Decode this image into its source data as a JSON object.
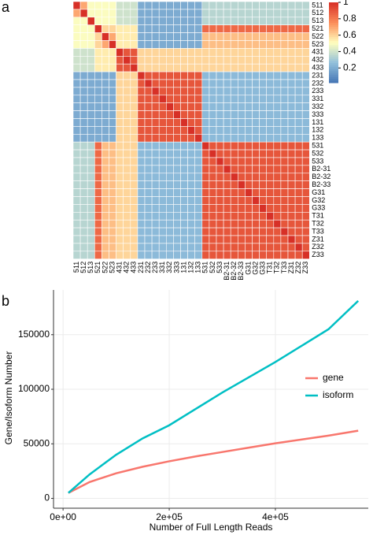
{
  "chart_data": [
    {
      "type": "heatmap",
      "panel_label": "a",
      "labels": [
        "511",
        "512",
        "513",
        "521",
        "522",
        "523",
        "431",
        "432",
        "433",
        "231",
        "232",
        "233",
        "331",
        "332",
        "333",
        "131",
        "132",
        "133",
        "531",
        "532",
        "533",
        "B2-31",
        "B2-32",
        "B2-33",
        "G31",
        "G32",
        "G33",
        "T31",
        "T32",
        "T33",
        "Z31",
        "Z32",
        "Z33"
      ],
      "clim": [
        0.02,
        1.0
      ],
      "cticks": [
        0.2,
        0.4,
        0.6,
        0.8,
        1
      ],
      "colormap": [
        "#4575b4",
        "#91bfdb",
        "#ffffbf",
        "#fc8d59",
        "#d73027"
      ],
      "matrix": [
        [
          1,
          0.7,
          0.5,
          0.5,
          0.5,
          0.5,
          0.4,
          0.4,
          0.4,
          0.2,
          0.2,
          0.2,
          0.2,
          0.2,
          0.2,
          0.2,
          0.2,
          0.2,
          0.35,
          0.35,
          0.35,
          0.35,
          0.35,
          0.35,
          0.35,
          0.35,
          0.35,
          0.35,
          0.35,
          0.35,
          0.35,
          0.35,
          0.35
        ],
        [
          0.7,
          1,
          0.5,
          0.5,
          0.5,
          0.5,
          0.4,
          0.4,
          0.4,
          0.2,
          0.2,
          0.2,
          0.2,
          0.2,
          0.2,
          0.2,
          0.2,
          0.2,
          0.35,
          0.35,
          0.35,
          0.35,
          0.35,
          0.35,
          0.35,
          0.35,
          0.35,
          0.35,
          0.35,
          0.35,
          0.35,
          0.35,
          0.35
        ],
        [
          0.5,
          0.5,
          1,
          0.5,
          0.5,
          0.5,
          0.4,
          0.4,
          0.4,
          0.2,
          0.2,
          0.2,
          0.2,
          0.2,
          0.2,
          0.2,
          0.2,
          0.2,
          0.35,
          0.35,
          0.35,
          0.35,
          0.35,
          0.35,
          0.35,
          0.35,
          0.35,
          0.35,
          0.35,
          0.35,
          0.35,
          0.35,
          0.35
        ],
        [
          0.5,
          0.5,
          0.5,
          1,
          0.6,
          0.6,
          0.55,
          0.55,
          0.55,
          0.2,
          0.2,
          0.2,
          0.2,
          0.2,
          0.2,
          0.2,
          0.2,
          0.2,
          0.85,
          0.85,
          0.85,
          0.85,
          0.85,
          0.85,
          0.85,
          0.85,
          0.85,
          0.85,
          0.85,
          0.85,
          0.85,
          0.85,
          0.85
        ],
        [
          0.5,
          0.5,
          0.5,
          0.6,
          1,
          0.7,
          0.55,
          0.55,
          0.55,
          0.2,
          0.2,
          0.2,
          0.2,
          0.2,
          0.2,
          0.2,
          0.2,
          0.2,
          0.65,
          0.65,
          0.65,
          0.65,
          0.65,
          0.65,
          0.65,
          0.65,
          0.65,
          0.65,
          0.65,
          0.65,
          0.65,
          0.65,
          0.65
        ],
        [
          0.5,
          0.5,
          0.5,
          0.6,
          0.7,
          1,
          0.55,
          0.55,
          0.55,
          0.2,
          0.2,
          0.2,
          0.2,
          0.2,
          0.2,
          0.2,
          0.2,
          0.2,
          0.65,
          0.65,
          0.65,
          0.65,
          0.65,
          0.65,
          0.65,
          0.65,
          0.65,
          0.65,
          0.65,
          0.65,
          0.65,
          0.65,
          0.65
        ],
        [
          0.4,
          0.4,
          0.4,
          0.55,
          0.55,
          0.55,
          1,
          0.9,
          0.9,
          0.6,
          0.6,
          0.6,
          0.6,
          0.6,
          0.6,
          0.6,
          0.6,
          0.6,
          0.6,
          0.6,
          0.6,
          0.6,
          0.6,
          0.6,
          0.6,
          0.6,
          0.6,
          0.6,
          0.6,
          0.6,
          0.6,
          0.6,
          0.6
        ],
        [
          0.4,
          0.4,
          0.4,
          0.55,
          0.55,
          0.55,
          0.9,
          1,
          0.9,
          0.6,
          0.6,
          0.6,
          0.6,
          0.6,
          0.6,
          0.6,
          0.6,
          0.6,
          0.6,
          0.6,
          0.6,
          0.6,
          0.6,
          0.6,
          0.6,
          0.6,
          0.6,
          0.6,
          0.6,
          0.6,
          0.6,
          0.6,
          0.6
        ],
        [
          0.4,
          0.4,
          0.4,
          0.55,
          0.55,
          0.55,
          0.9,
          0.9,
          1,
          0.6,
          0.6,
          0.6,
          0.6,
          0.6,
          0.6,
          0.6,
          0.6,
          0.6,
          0.6,
          0.6,
          0.6,
          0.6,
          0.6,
          0.6,
          0.6,
          0.6,
          0.6,
          0.6,
          0.6,
          0.6,
          0.6,
          0.6,
          0.6
        ],
        [
          0.2,
          0.2,
          0.2,
          0.2,
          0.2,
          0.2,
          0.6,
          0.6,
          0.6,
          1,
          0.9,
          0.9,
          0.9,
          0.9,
          0.9,
          0.9,
          0.9,
          0.9,
          0.25,
          0.25,
          0.25,
          0.25,
          0.25,
          0.25,
          0.25,
          0.25,
          0.25,
          0.25,
          0.25,
          0.25,
          0.25,
          0.25,
          0.25
        ],
        [
          0.2,
          0.2,
          0.2,
          0.2,
          0.2,
          0.2,
          0.6,
          0.6,
          0.6,
          0.9,
          1,
          0.9,
          0.9,
          0.9,
          0.9,
          0.9,
          0.9,
          0.9,
          0.25,
          0.25,
          0.25,
          0.25,
          0.25,
          0.25,
          0.25,
          0.25,
          0.25,
          0.25,
          0.25,
          0.25,
          0.25,
          0.25,
          0.25
        ],
        [
          0.2,
          0.2,
          0.2,
          0.2,
          0.2,
          0.2,
          0.6,
          0.6,
          0.6,
          0.9,
          0.9,
          1,
          0.9,
          0.9,
          0.9,
          0.9,
          0.9,
          0.9,
          0.25,
          0.25,
          0.25,
          0.25,
          0.25,
          0.25,
          0.25,
          0.25,
          0.25,
          0.25,
          0.25,
          0.25,
          0.25,
          0.25,
          0.25
        ],
        [
          0.2,
          0.2,
          0.2,
          0.2,
          0.2,
          0.2,
          0.6,
          0.6,
          0.6,
          0.9,
          0.9,
          0.9,
          1,
          0.9,
          0.9,
          0.9,
          0.9,
          0.9,
          0.25,
          0.25,
          0.25,
          0.25,
          0.25,
          0.25,
          0.25,
          0.25,
          0.25,
          0.25,
          0.25,
          0.25,
          0.25,
          0.25,
          0.25
        ],
        [
          0.2,
          0.2,
          0.2,
          0.2,
          0.2,
          0.2,
          0.6,
          0.6,
          0.6,
          0.9,
          0.9,
          0.9,
          0.9,
          1,
          0.9,
          0.9,
          0.9,
          0.9,
          0.25,
          0.25,
          0.25,
          0.25,
          0.25,
          0.25,
          0.25,
          0.25,
          0.25,
          0.25,
          0.25,
          0.25,
          0.25,
          0.25,
          0.25
        ],
        [
          0.2,
          0.2,
          0.2,
          0.2,
          0.2,
          0.2,
          0.6,
          0.6,
          0.6,
          0.9,
          0.9,
          0.9,
          0.9,
          0.9,
          1,
          0.9,
          0.9,
          0.9,
          0.25,
          0.25,
          0.25,
          0.25,
          0.25,
          0.25,
          0.25,
          0.25,
          0.25,
          0.25,
          0.25,
          0.25,
          0.25,
          0.25,
          0.25
        ],
        [
          0.2,
          0.2,
          0.2,
          0.2,
          0.2,
          0.2,
          0.6,
          0.6,
          0.6,
          0.9,
          0.9,
          0.9,
          0.9,
          0.9,
          0.9,
          1,
          0.9,
          0.9,
          0.25,
          0.25,
          0.25,
          0.25,
          0.25,
          0.25,
          0.25,
          0.25,
          0.25,
          0.25,
          0.25,
          0.25,
          0.25,
          0.25,
          0.25
        ],
        [
          0.2,
          0.2,
          0.2,
          0.2,
          0.2,
          0.2,
          0.6,
          0.6,
          0.6,
          0.9,
          0.9,
          0.9,
          0.9,
          0.9,
          0.9,
          0.9,
          1,
          0.9,
          0.25,
          0.25,
          0.25,
          0.25,
          0.25,
          0.25,
          0.25,
          0.25,
          0.25,
          0.25,
          0.25,
          0.25,
          0.25,
          0.25,
          0.25
        ],
        [
          0.2,
          0.2,
          0.2,
          0.2,
          0.2,
          0.2,
          0.6,
          0.6,
          0.6,
          0.9,
          0.9,
          0.9,
          0.9,
          0.9,
          0.9,
          0.9,
          0.9,
          1,
          0.25,
          0.25,
          0.25,
          0.25,
          0.25,
          0.25,
          0.25,
          0.25,
          0.25,
          0.25,
          0.25,
          0.25,
          0.25,
          0.25,
          0.25
        ],
        [
          0.35,
          0.35,
          0.35,
          0.85,
          0.65,
          0.65,
          0.6,
          0.6,
          0.6,
          0.25,
          0.25,
          0.25,
          0.25,
          0.25,
          0.25,
          0.25,
          0.25,
          0.25,
          1,
          0.9,
          0.9,
          0.9,
          0.9,
          0.9,
          0.9,
          0.9,
          0.9,
          0.9,
          0.9,
          0.9,
          0.9,
          0.9,
          0.9
        ],
        [
          0.35,
          0.35,
          0.35,
          0.85,
          0.65,
          0.65,
          0.6,
          0.6,
          0.6,
          0.25,
          0.25,
          0.25,
          0.25,
          0.25,
          0.25,
          0.25,
          0.25,
          0.25,
          0.9,
          1,
          0.9,
          0.9,
          0.9,
          0.9,
          0.9,
          0.9,
          0.9,
          0.9,
          0.9,
          0.9,
          0.9,
          0.9,
          0.9
        ],
        [
          0.35,
          0.35,
          0.35,
          0.85,
          0.65,
          0.65,
          0.6,
          0.6,
          0.6,
          0.25,
          0.25,
          0.25,
          0.25,
          0.25,
          0.25,
          0.25,
          0.25,
          0.25,
          0.9,
          0.9,
          1,
          0.9,
          0.9,
          0.9,
          0.9,
          0.9,
          0.9,
          0.9,
          0.9,
          0.9,
          0.9,
          0.9,
          0.9
        ],
        [
          0.35,
          0.35,
          0.35,
          0.85,
          0.65,
          0.65,
          0.6,
          0.6,
          0.6,
          0.25,
          0.25,
          0.25,
          0.25,
          0.25,
          0.25,
          0.25,
          0.25,
          0.25,
          0.9,
          0.9,
          0.9,
          1,
          0.9,
          0.9,
          0.9,
          0.9,
          0.9,
          0.9,
          0.9,
          0.9,
          0.9,
          0.9,
          0.9
        ],
        [
          0.35,
          0.35,
          0.35,
          0.85,
          0.65,
          0.65,
          0.6,
          0.6,
          0.6,
          0.25,
          0.25,
          0.25,
          0.25,
          0.25,
          0.25,
          0.25,
          0.25,
          0.25,
          0.9,
          0.9,
          0.9,
          0.9,
          1,
          0.9,
          0.9,
          0.9,
          0.9,
          0.9,
          0.9,
          0.9,
          0.9,
          0.9,
          0.9
        ],
        [
          0.35,
          0.35,
          0.35,
          0.85,
          0.65,
          0.65,
          0.6,
          0.6,
          0.6,
          0.25,
          0.25,
          0.25,
          0.25,
          0.25,
          0.25,
          0.25,
          0.25,
          0.25,
          0.9,
          0.9,
          0.9,
          0.9,
          0.9,
          1,
          0.9,
          0.9,
          0.9,
          0.9,
          0.9,
          0.9,
          0.9,
          0.9,
          0.9
        ],
        [
          0.35,
          0.35,
          0.35,
          0.85,
          0.65,
          0.65,
          0.6,
          0.6,
          0.6,
          0.25,
          0.25,
          0.25,
          0.25,
          0.25,
          0.25,
          0.25,
          0.25,
          0.25,
          0.9,
          0.9,
          0.9,
          0.9,
          0.9,
          0.9,
          1,
          0.9,
          0.9,
          0.9,
          0.9,
          0.9,
          0.9,
          0.9,
          0.9
        ],
        [
          0.35,
          0.35,
          0.35,
          0.85,
          0.65,
          0.65,
          0.6,
          0.6,
          0.6,
          0.25,
          0.25,
          0.25,
          0.25,
          0.25,
          0.25,
          0.25,
          0.25,
          0.25,
          0.9,
          0.9,
          0.9,
          0.9,
          0.9,
          0.9,
          0.9,
          1,
          0.9,
          0.9,
          0.9,
          0.9,
          0.9,
          0.9,
          0.9
        ],
        [
          0.35,
          0.35,
          0.35,
          0.85,
          0.65,
          0.65,
          0.6,
          0.6,
          0.6,
          0.25,
          0.25,
          0.25,
          0.25,
          0.25,
          0.25,
          0.25,
          0.25,
          0.25,
          0.9,
          0.9,
          0.9,
          0.9,
          0.9,
          0.9,
          0.9,
          0.9,
          1,
          0.9,
          0.9,
          0.9,
          0.9,
          0.9,
          0.9
        ],
        [
          0.35,
          0.35,
          0.35,
          0.85,
          0.65,
          0.65,
          0.6,
          0.6,
          0.6,
          0.25,
          0.25,
          0.25,
          0.25,
          0.25,
          0.25,
          0.25,
          0.25,
          0.25,
          0.9,
          0.9,
          0.9,
          0.9,
          0.9,
          0.9,
          0.9,
          0.9,
          0.9,
          1,
          0.9,
          0.9,
          0.9,
          0.9,
          0.9
        ],
        [
          0.35,
          0.35,
          0.35,
          0.85,
          0.65,
          0.65,
          0.6,
          0.6,
          0.6,
          0.25,
          0.25,
          0.25,
          0.25,
          0.25,
          0.25,
          0.25,
          0.25,
          0.25,
          0.9,
          0.9,
          0.9,
          0.9,
          0.9,
          0.9,
          0.9,
          0.9,
          0.9,
          0.9,
          1,
          0.9,
          0.9,
          0.9,
          0.9
        ],
        [
          0.35,
          0.35,
          0.35,
          0.85,
          0.65,
          0.65,
          0.6,
          0.6,
          0.6,
          0.25,
          0.25,
          0.25,
          0.25,
          0.25,
          0.25,
          0.25,
          0.25,
          0.25,
          0.9,
          0.9,
          0.9,
          0.9,
          0.9,
          0.9,
          0.9,
          0.9,
          0.9,
          0.9,
          0.9,
          1,
          0.9,
          0.9,
          0.9
        ],
        [
          0.35,
          0.35,
          0.35,
          0.85,
          0.65,
          0.65,
          0.6,
          0.6,
          0.6,
          0.25,
          0.25,
          0.25,
          0.25,
          0.25,
          0.25,
          0.25,
          0.25,
          0.25,
          0.9,
          0.9,
          0.9,
          0.9,
          0.9,
          0.9,
          0.9,
          0.9,
          0.9,
          0.9,
          0.9,
          0.9,
          1,
          0.9,
          0.9
        ],
        [
          0.35,
          0.35,
          0.35,
          0.85,
          0.65,
          0.65,
          0.6,
          0.6,
          0.6,
          0.25,
          0.25,
          0.25,
          0.25,
          0.25,
          0.25,
          0.25,
          0.25,
          0.25,
          0.9,
          0.9,
          0.9,
          0.9,
          0.9,
          0.9,
          0.9,
          0.9,
          0.9,
          0.9,
          0.9,
          0.9,
          0.9,
          1,
          0.9
        ],
        [
          0.35,
          0.35,
          0.35,
          0.85,
          0.65,
          0.65,
          0.6,
          0.6,
          0.6,
          0.25,
          0.25,
          0.25,
          0.25,
          0.25,
          0.25,
          0.25,
          0.25,
          0.25,
          0.9,
          0.9,
          0.9,
          0.9,
          0.9,
          0.9,
          0.9,
          0.9,
          0.9,
          0.9,
          0.9,
          0.9,
          0.9,
          0.9,
          1
        ]
      ]
    },
    {
      "type": "line",
      "panel_label": "b",
      "xlabel": "Number of Full Length Reads",
      "ylabel": "Gene/Isoform Number",
      "x": [
        10000,
        50000,
        100000,
        150000,
        200000,
        250000,
        300000,
        350000,
        400000,
        450000,
        500000,
        556000
      ],
      "series": [
        {
          "name": "gene",
          "color": "#f8766d",
          "values": [
            5000,
            15000,
            23000,
            29000,
            34000,
            38500,
            42500,
            46500,
            50500,
            54000,
            57500,
            62000
          ]
        },
        {
          "name": "isoform",
          "color": "#00bfc4",
          "values": [
            5000,
            22000,
            40000,
            55000,
            67000,
            82000,
            97000,
            111000,
            125000,
            140000,
            155000,
            181000
          ]
        }
      ],
      "xlim": [
        -18000,
        575000
      ],
      "ylim": [
        -9000,
        191000
      ],
      "xticks": [
        {
          "value": 0,
          "label": "0e+00"
        },
        {
          "value": 200000,
          "label": "2e+05"
        },
        {
          "value": 400000,
          "label": "4e+05"
        }
      ],
      "yticks": [
        0,
        50000,
        100000,
        150000
      ],
      "grid": true
    }
  ]
}
